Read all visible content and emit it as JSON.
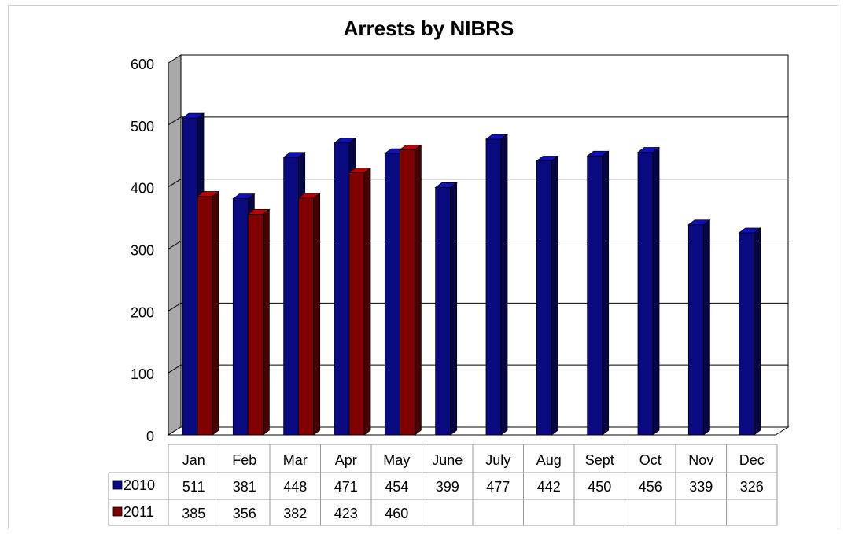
{
  "chart_data": {
    "type": "bar",
    "title": "Arrests by NIBRS",
    "categories": [
      "Jan",
      "Feb",
      "Mar",
      "Apr",
      "May",
      "June",
      "July",
      "Aug",
      "Sept",
      "Oct",
      "Nov",
      "Dec"
    ],
    "series": [
      {
        "name": "2010",
        "color": "#0a0a80",
        "values": [
          511,
          381,
          448,
          471,
          454,
          399,
          477,
          442,
          450,
          456,
          339,
          326
        ]
      },
      {
        "name": "2011",
        "color": "#800000",
        "values": [
          385,
          356,
          382,
          423,
          460,
          null,
          null,
          null,
          null,
          null,
          null,
          null
        ]
      }
    ],
    "ylim": [
      0,
      600
    ],
    "yticks": [
      0,
      100,
      200,
      300,
      400,
      500,
      600
    ],
    "grid": true,
    "legend": "data-table-left",
    "data_table": true
  }
}
